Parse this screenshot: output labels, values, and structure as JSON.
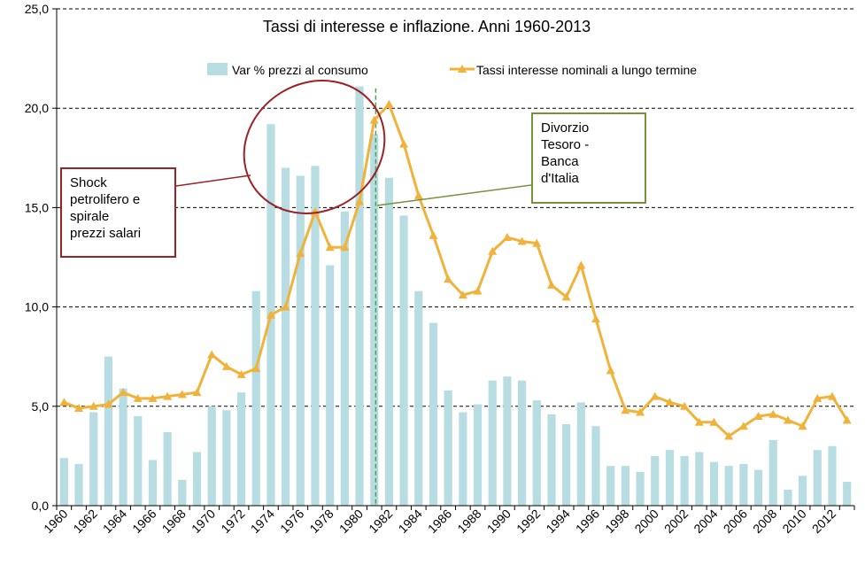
{
  "chart_data": {
    "type": "bar+line",
    "title": "Tassi di interesse e inflazione. Anni  1960-2013",
    "xlabel": "",
    "ylabel": "",
    "ylim": [
      0,
      25
    ],
    "yticks": [
      "0,0",
      "5,0",
      "10,0",
      "15,0",
      "20,0",
      "25,0"
    ],
    "grid": "horizontal dashed",
    "legend_position": "top",
    "categories": [
      1960,
      1961,
      1962,
      1963,
      1964,
      1965,
      1966,
      1967,
      1968,
      1969,
      1970,
      1971,
      1972,
      1973,
      1974,
      1975,
      1976,
      1977,
      1978,
      1979,
      1980,
      1981,
      1982,
      1983,
      1984,
      1985,
      1986,
      1987,
      1988,
      1989,
      1990,
      1991,
      1992,
      1993,
      1994,
      1995,
      1996,
      1997,
      1998,
      1999,
      2000,
      2001,
      2002,
      2003,
      2004,
      2005,
      2006,
      2007,
      2008,
      2009,
      2010,
      2011,
      2012,
      2013
    ],
    "xtick_labels": [
      "1960",
      "1962",
      "1964",
      "1966",
      "1968",
      "1970",
      "1972",
      "1974",
      "1976",
      "1978",
      "1980",
      "1982",
      "1984",
      "1986",
      "1988",
      "1990",
      "1992",
      "1994",
      "1996",
      "1998",
      "2000",
      "2002",
      "2004",
      "2006",
      "2008",
      "2010",
      "2012"
    ],
    "series": [
      {
        "name": "Var % prezzi al consumo",
        "kind": "bar",
        "color": "#b7dde2",
        "values": [
          2.4,
          2.1,
          4.7,
          7.5,
          5.9,
          4.5,
          2.3,
          3.7,
          1.3,
          2.7,
          5.0,
          4.8,
          5.7,
          10.8,
          19.2,
          17.0,
          16.6,
          17.1,
          12.1,
          14.8,
          21.1,
          18.7,
          16.5,
          14.6,
          10.8,
          9.2,
          5.8,
          4.7,
          5.1,
          6.3,
          6.5,
          6.3,
          5.3,
          4.6,
          4.1,
          5.2,
          4.0,
          2.0,
          2.0,
          1.7,
          2.5,
          2.8,
          2.5,
          2.7,
          2.2,
          2.0,
          2.1,
          1.8,
          3.3,
          0.8,
          1.5,
          2.8,
          3.0,
          1.2
        ]
      },
      {
        "name": "Tassi interesse nominali a lungo termine",
        "kind": "line",
        "color": "#f0b23a",
        "values": [
          5.2,
          4.9,
          5.0,
          5.1,
          5.7,
          5.4,
          5.4,
          5.5,
          5.6,
          5.7,
          7.6,
          7.0,
          6.6,
          6.9,
          9.6,
          10.0,
          12.7,
          14.8,
          13.0,
          13.0,
          15.3,
          19.4,
          20.2,
          18.2,
          15.6,
          13.6,
          11.4,
          10.6,
          10.8,
          12.8,
          13.5,
          13.3,
          13.2,
          11.1,
          10.5,
          12.1,
          9.4,
          6.8,
          4.8,
          4.7,
          5.5,
          5.2,
          5.0,
          4.2,
          4.2,
          3.5,
          4.0,
          4.5,
          4.6,
          4.3,
          4.0,
          5.4,
          5.5,
          4.3
        ]
      }
    ],
    "markers": [
      {
        "kind": "vertical-dashed-line",
        "x": 1981,
        "color": "#4aa34f"
      }
    ],
    "annotations": [
      {
        "id": "shock",
        "lines": [
          "Shock",
          "petrolifero e",
          "spirale",
          "prezzi salari"
        ],
        "border_color": "#9b2226"
      },
      {
        "id": "divorzio",
        "lines": [
          "Divorzio",
          "Tesoro -",
          "Banca",
          "d'Italia"
        ],
        "border_color": "#76923c"
      }
    ]
  }
}
